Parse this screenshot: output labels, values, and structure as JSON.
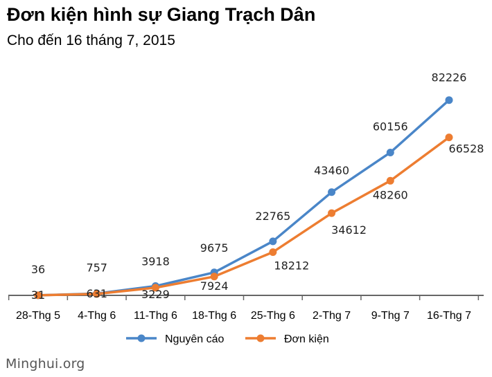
{
  "chart_data": {
    "type": "line",
    "title": "Đơn kiện hình sự Giang Trạch Dân",
    "subtitle": "Cho đến 16 tháng 7, 2015",
    "categories": [
      "28-Thg 5",
      "4-Thg 6",
      "11-Thg 6",
      "18-Thg 6",
      "25-Thg 6",
      "2-Thg 7",
      "9-Thg 7",
      "16-Thg 7"
    ],
    "series": [
      {
        "name": "Nguyên cáo",
        "color": "#4a86c8",
        "values": [
          36,
          757,
          3918,
          9675,
          22765,
          43460,
          60156,
          82226
        ]
      },
      {
        "name": "Đơn kiện",
        "color": "#ed7d31",
        "values": [
          31,
          631,
          3229,
          7924,
          18212,
          34612,
          48260,
          66528
        ]
      }
    ],
    "ylim": [
      0,
      90000
    ],
    "grid": false,
    "legend": "bottom",
    "xlabel": "",
    "ylabel": ""
  },
  "watermark": "Minghui.org"
}
